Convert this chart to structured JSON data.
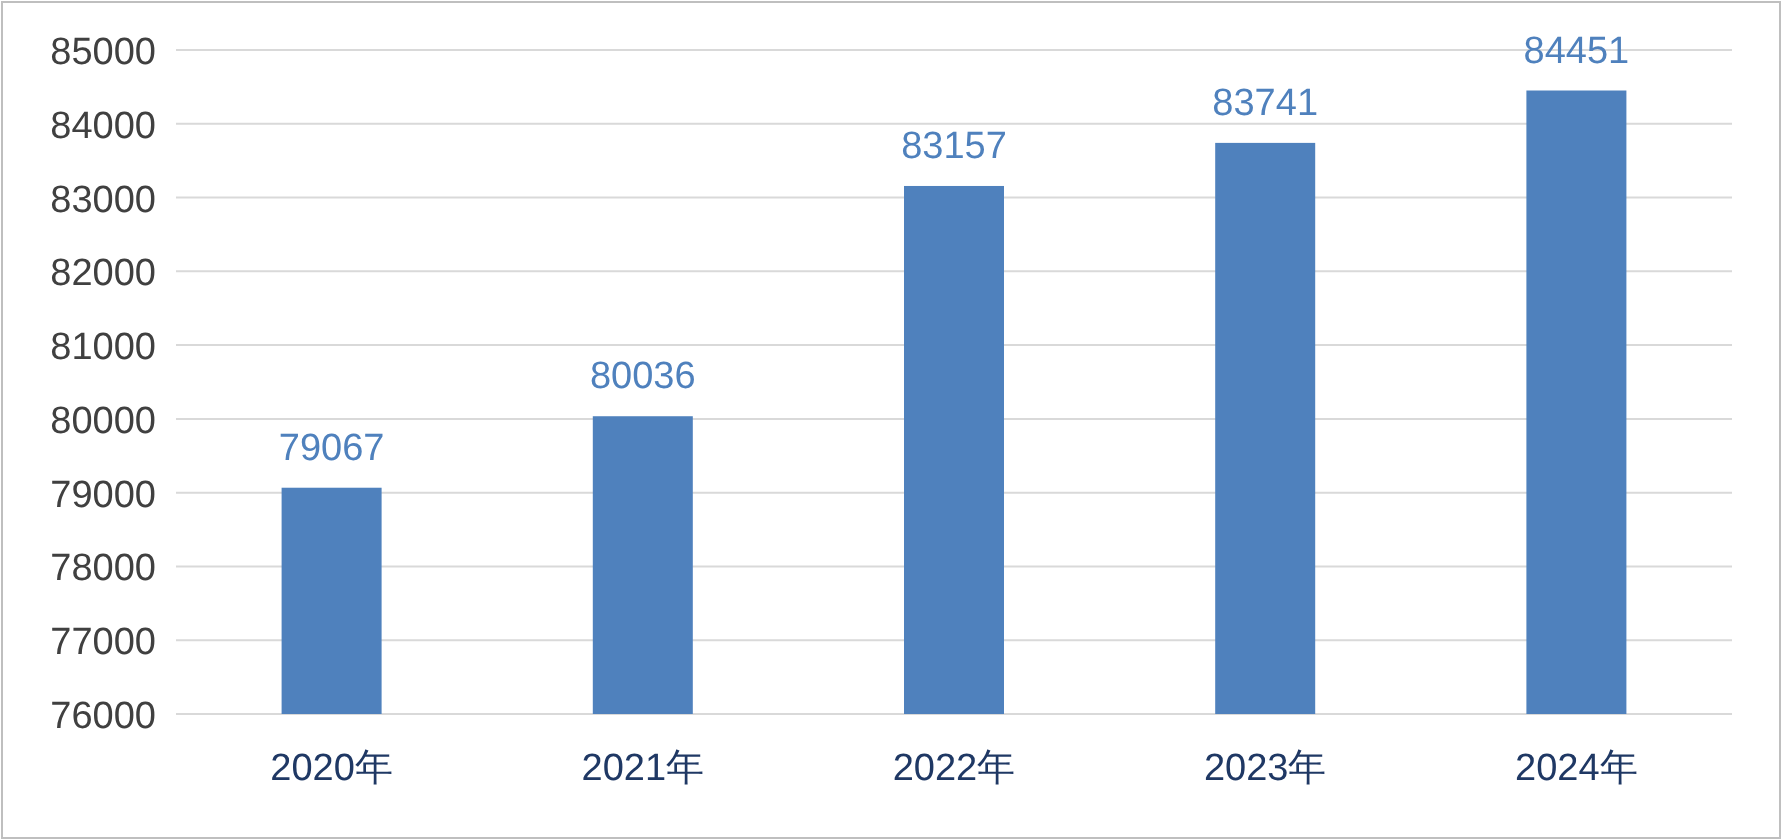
{
  "chart_data": {
    "type": "bar",
    "categories": [
      "2020年",
      "2021年",
      "2022年",
      "2023年",
      "2024年"
    ],
    "values": [
      79067,
      80036,
      83157,
      83741,
      84451
    ],
    "color": "#4f81bd",
    "ylim": [
      76000,
      85000
    ],
    "yticks": [
      76000,
      77000,
      78000,
      79000,
      80000,
      81000,
      82000,
      83000,
      84000,
      85000
    ],
    "grid": "y",
    "data_labels": true
  }
}
